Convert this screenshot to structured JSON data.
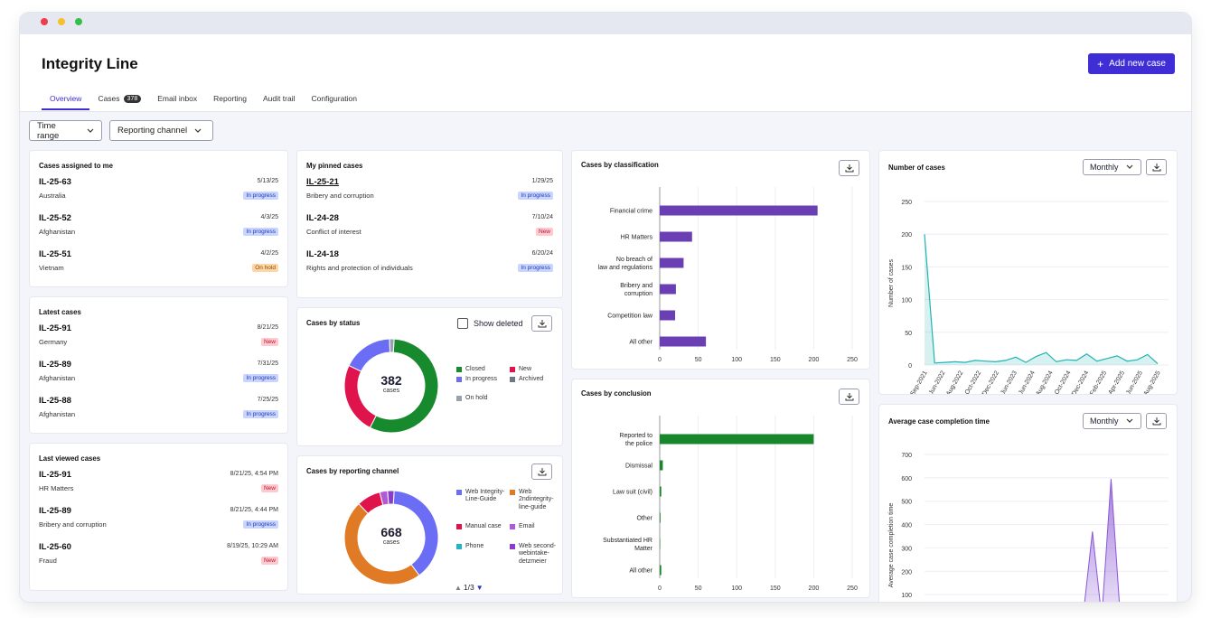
{
  "app": {
    "title": "Integrity Line",
    "add_button": "Add new case",
    "window_dots": [
      "#ee3d4a",
      "#f4c12c",
      "#31c04b"
    ]
  },
  "tabs": [
    {
      "label": "Overview",
      "active": true
    },
    {
      "label": "Cases",
      "badge": "378"
    },
    {
      "label": "Email inbox"
    },
    {
      "label": "Reporting"
    },
    {
      "label": "Audit trail"
    },
    {
      "label": "Configuration"
    }
  ],
  "filters": {
    "time_range": "Time range",
    "reporting_channel": "Reporting channel"
  },
  "assigned": {
    "title": "Cases assigned to me",
    "items": [
      {
        "id": "IL-25-63",
        "date": "5/13/25",
        "sub": "Australia",
        "status": "In progress",
        "kind": "prog"
      },
      {
        "id": "IL-25-52",
        "date": "4/3/25",
        "sub": "Afghanistan",
        "status": "In progress",
        "kind": "prog"
      },
      {
        "id": "IL-25-51",
        "date": "4/2/25",
        "sub": "Vietnam",
        "status": "On hold",
        "kind": "hold"
      }
    ]
  },
  "latest": {
    "title": "Latest cases",
    "items": [
      {
        "id": "IL-25-91",
        "date": "8/21/25",
        "sub": "Germany",
        "status": "New",
        "kind": "new"
      },
      {
        "id": "IL-25-89",
        "date": "7/31/25",
        "sub": "Afghanistan",
        "status": "In progress",
        "kind": "prog"
      },
      {
        "id": "IL-25-88",
        "date": "7/25/25",
        "sub": "Afghanistan",
        "status": "In progress",
        "kind": "prog"
      }
    ]
  },
  "last_viewed": {
    "title": "Last viewed cases",
    "items": [
      {
        "id": "IL-25-91",
        "date": "8/21/25, 4:54 PM",
        "sub": "HR Matters",
        "status": "New",
        "kind": "new"
      },
      {
        "id": "IL-25-89",
        "date": "8/21/25, 4:44 PM",
        "sub": "Bribery and corruption",
        "status": "In progress",
        "kind": "prog"
      },
      {
        "id": "IL-25-60",
        "date": "8/19/25, 10:29 AM",
        "sub": "Fraud",
        "status": "New",
        "kind": "new"
      }
    ]
  },
  "pinned": {
    "title": "My pinned cases",
    "items": [
      {
        "id": "IL-25-21",
        "date": "1/29/25",
        "sub": "Bribery and corruption",
        "status": "In progress",
        "kind": "prog"
      },
      {
        "id": "IL-24-28",
        "date": "7/10/24",
        "sub": "Conflict of interest",
        "status": "New",
        "kind": "new"
      },
      {
        "id": "IL-24-18",
        "date": "6/20/24",
        "sub": "Rights and protection of individuals",
        "status": "In progress",
        "kind": "prog"
      }
    ]
  },
  "by_status": {
    "title": "Cases by status",
    "show_deleted": "Show deleted",
    "total": "382",
    "unit": "cases",
    "legend": [
      {
        "label": "Closed",
        "color": "#188a2e"
      },
      {
        "label": "New",
        "color": "#e0144c"
      },
      {
        "label": "In progress",
        "color": "#6b6ef5"
      },
      {
        "label": "Archived",
        "color": "#6f7686"
      },
      {
        "label": "On hold",
        "color": "#9aa1ad"
      }
    ]
  },
  "by_channel": {
    "title": "Cases by reporting channel",
    "total": "668",
    "unit": "cases",
    "pager": "1/3",
    "legend": [
      {
        "label": "Web Integrity-Line-Guide",
        "color": "#6b6ef5"
      },
      {
        "label": "Web 2ndintegrity-line-guide",
        "color": "#e07a24"
      },
      {
        "label": "Manual case",
        "color": "#e0144c"
      },
      {
        "label": "Email",
        "color": "#b05ad6"
      },
      {
        "label": "Phone",
        "color": "#26b2c7"
      },
      {
        "label": "Web second-webintake-detzmeier",
        "color": "#8c3cc9"
      }
    ]
  },
  "chart_data": [
    {
      "type": "pie",
      "title": "Cases by status",
      "categories": [
        "Closed",
        "New",
        "In progress",
        "On hold"
      ],
      "values": [
        216,
        94,
        66,
        6
      ],
      "colors": [
        "#188a2e",
        "#e0144c",
        "#6b6ef5",
        "#9aa1ad"
      ]
    },
    {
      "type": "pie",
      "title": "Cases by reporting channel",
      "categories": [
        "Web Integrity-Line-Guide",
        "Web 2ndintegrity-line-guide",
        "Manual case",
        "Email",
        "Web second-webintake-detzmeier"
      ],
      "values": [
        260,
        320,
        55,
        18,
        15
      ],
      "colors": [
        "#6b6ef5",
        "#e07a24",
        "#e0144c",
        "#b05ad6",
        "#8c3cc9"
      ]
    },
    {
      "type": "bar",
      "title": "Cases by classification",
      "orientation": "horizontal",
      "categories": [
        "Financial crime",
        "HR Matters",
        "No breach of law and regulations",
        "Bribery and corruption",
        "Competition law",
        "All other"
      ],
      "values": [
        205,
        42,
        31,
        21,
        20,
        60
      ],
      "xticks": [
        0,
        50,
        100,
        150,
        200,
        250
      ],
      "xlim": [
        0,
        250
      ],
      "color": "#6a3fb4"
    },
    {
      "type": "bar",
      "title": "Cases by conclusion",
      "orientation": "horizontal",
      "categories": [
        "Reported to the police",
        "Dismissal",
        "Law suit (civil)",
        "Other",
        "Substantiated HR Matter",
        "All other"
      ],
      "values": [
        200,
        4,
        2,
        1,
        0,
        2
      ],
      "xticks": [
        0,
        50,
        100,
        150,
        200,
        250
      ],
      "xlim": [
        0,
        250
      ],
      "color": "#18862a"
    },
    {
      "type": "line",
      "title": "Number of cases",
      "ylabel": "Number of cases",
      "period": "Monthly",
      "xticks": [
        "Sep-2021",
        "Jun-2022",
        "Aug-2022",
        "Oct-2022",
        "Dec-2022",
        "Jun-2023",
        "Jun-2024",
        "Aug-2024",
        "Oct-2024",
        "Dec-2024",
        "Feb-2025",
        "Apr-2025",
        "Jun-2025",
        "Aug-2025"
      ],
      "yticks": [
        0,
        50,
        100,
        150,
        200,
        250
      ],
      "ylim": [
        0,
        250
      ],
      "values": [
        200,
        3,
        4,
        5,
        4,
        7,
        6,
        5,
        7,
        12,
        4,
        13,
        19,
        5,
        8,
        7,
        17,
        6,
        10,
        14,
        6,
        8,
        16,
        2
      ],
      "color": "#22b3b3"
    },
    {
      "type": "area",
      "title": "Average case completion time",
      "ylabel": "Average case completion time",
      "period": "Monthly",
      "yticks": [
        0,
        100,
        200,
        300,
        400,
        500,
        600,
        700
      ],
      "ylim": [
        0,
        700
      ],
      "values": [
        0,
        0,
        0,
        0,
        0,
        0,
        0,
        0,
        0,
        0,
        0,
        0,
        0,
        0,
        0,
        0,
        0,
        5,
        370,
        0,
        595,
        0,
        15,
        0,
        0,
        10
      ],
      "color": "#8b57d6"
    }
  ]
}
